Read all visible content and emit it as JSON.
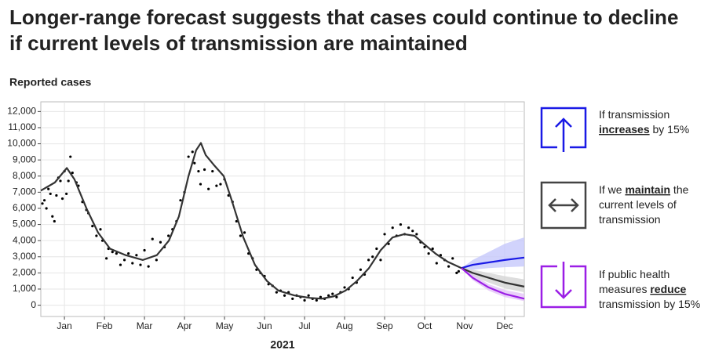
{
  "chart_data": {
    "type": "line",
    "title": "Longer-range forecast suggests that cases could continue to decline if current levels of transmission are maintained",
    "ylabel": "Reported cases",
    "xlabel": "2021",
    "xlim": [
      0.41,
      12.49
    ],
    "xticks": [
      {
        "value": 1,
        "label": "Jan"
      },
      {
        "value": 2,
        "label": "Feb"
      },
      {
        "value": 3,
        "label": "Mar"
      },
      {
        "value": 4,
        "label": "Apr"
      },
      {
        "value": 5,
        "label": "May"
      },
      {
        "value": 6,
        "label": "Jun"
      },
      {
        "value": 7,
        "label": "Jul"
      },
      {
        "value": 8,
        "label": "Aug"
      },
      {
        "value": 9,
        "label": "Sep"
      },
      {
        "value": 10,
        "label": "Oct"
      },
      {
        "value": 11,
        "label": "Nov"
      },
      {
        "value": 12,
        "label": "Dec"
      }
    ],
    "ylim": [
      -700,
      12600
    ],
    "yticks": [
      0,
      {
        "value": 1000,
        "label": "1,000"
      },
      {
        "value": 2000,
        "label": "2,000"
      },
      {
        "value": 3000,
        "label": "3,000"
      },
      {
        "value": 4000,
        "label": "4,000"
      },
      {
        "value": 5000,
        "label": "5,000"
      },
      {
        "value": 6000,
        "label": "6,000"
      },
      {
        "value": 7000,
        "label": "7,000"
      },
      {
        "value": 8000,
        "label": "8,000"
      },
      {
        "value": 9000,
        "label": "9,000"
      },
      {
        "value": 10000,
        "label": "10,000"
      },
      {
        "value": 11000,
        "label": "11,000"
      },
      {
        "value": 12000,
        "label": "12,000"
      }
    ],
    "grid": true,
    "series": [
      {
        "marker": "dot",
        "color": "#000000",
        "x": [
          0.45,
          0.5,
          0.55,
          0.6,
          0.65,
          0.7,
          0.75,
          0.8,
          0.85,
          0.9,
          0.95,
          1.0,
          1.05,
          1.1,
          1.15,
          1.2,
          1.3,
          1.35,
          1.45,
          1.55,
          1.6,
          1.7,
          1.8,
          1.9,
          1.95,
          2.05,
          2.1,
          2.2,
          2.3,
          2.4,
          2.5,
          2.6,
          2.7,
          2.8,
          2.9,
          3.0,
          3.1,
          3.2,
          3.3,
          3.4,
          3.5,
          3.6,
          3.7,
          3.8,
          3.9,
          4.0,
          4.1,
          4.2,
          4.25,
          4.35,
          4.4,
          4.5,
          4.6,
          4.7,
          4.8,
          4.9,
          5.0,
          5.1,
          5.2,
          5.3,
          5.4,
          5.5,
          5.6,
          5.7,
          5.8,
          5.9,
          6.0,
          6.1,
          6.2,
          6.3,
          6.4,
          6.5,
          6.6,
          6.7,
          6.8,
          6.9,
          7.0,
          7.1,
          7.2,
          7.3,
          7.4,
          7.5,
          7.6,
          7.7,
          7.8,
          7.9,
          8.0,
          8.1,
          8.2,
          8.3,
          8.4,
          8.5,
          8.6,
          8.7,
          8.8,
          8.9,
          9.0,
          9.1,
          9.2,
          9.3,
          9.4,
          9.5,
          9.6,
          9.7,
          9.8,
          9.9,
          10.0,
          10.1,
          10.2,
          10.3,
          10.4,
          10.5,
          10.6,
          10.7,
          10.8,
          10.85
        ],
        "values": [
          6300,
          6500,
          6000,
          7200,
          6900,
          5500,
          5200,
          6800,
          7900,
          7700,
          6600,
          8300,
          6900,
          7700,
          9200,
          8200,
          7600,
          7400,
          6400,
          5900,
          5700,
          4900,
          4300,
          4700,
          4000,
          2900,
          3500,
          3300,
          3200,
          2500,
          2800,
          3200,
          2600,
          3100,
          2500,
          3400,
          2400,
          4100,
          2800,
          3900,
          3600,
          4300,
          4700,
          5200,
          6500,
          7000,
          9200,
          9500,
          8800,
          8300,
          7500,
          8400,
          7200,
          8300,
          7400,
          7500,
          7800,
          6800,
          6400,
          5200,
          4300,
          4500,
          3200,
          2900,
          2200,
          2000,
          1800,
          1300,
          1200,
          800,
          900,
          600,
          800,
          400,
          600,
          500,
          300,
          600,
          400,
          300,
          500,
          400,
          600,
          700,
          500,
          800,
          1100,
          1000,
          1700,
          1400,
          2200,
          1900,
          2800,
          3000,
          3500,
          2800,
          4400,
          3800,
          4800,
          4300,
          5000,
          4400,
          4800,
          4600,
          4400,
          3900,
          3600,
          3200,
          3500,
          2600,
          3100,
          2800,
          2400,
          2900,
          2000,
          2100
        ]
      },
      {
        "color": "#333333",
        "x": [
          0.41,
          0.76,
          1.06,
          1.25,
          1.55,
          1.84,
          2.14,
          2.53,
          2.96,
          3.31,
          3.61,
          3.86,
          4.1,
          4.29,
          4.41,
          4.53,
          4.73,
          4.98,
          5.18,
          5.47,
          5.76,
          6.06,
          6.35,
          6.75,
          7.14,
          7.43,
          7.73,
          8.02,
          8.31,
          8.61,
          8.9,
          9.2,
          9.49,
          9.75,
          9.98,
          10.27,
          10.57,
          10.92
        ],
        "values": [
          7100,
          7600,
          8500,
          7800,
          6000,
          4500,
          3500,
          3100,
          2800,
          3100,
          4000,
          5500,
          8000,
          9600,
          10050,
          9300,
          8700,
          8000,
          6500,
          4200,
          2500,
          1500,
          900,
          600,
          450,
          400,
          550,
          900,
          1500,
          2300,
          3400,
          4200,
          4400,
          4300,
          3800,
          3200,
          2700,
          2300
        ]
      },
      {
        "color": "#1a1ae6",
        "band_color": "#c5c8fb",
        "x": [
          10.92,
          11.2,
          11.6,
          12.0,
          12.49
        ],
        "values": [
          2300,
          2500,
          2650,
          2800,
          2950
        ],
        "lower": [
          2300,
          2200,
          2300,
          2350,
          2400
        ],
        "upper": [
          2300,
          2800,
          3300,
          3800,
          4200
        ]
      },
      {
        "color": "#333333",
        "band_color": "#d4d4d4",
        "x": [
          10.92,
          11.2,
          11.6,
          12.0,
          12.49
        ],
        "values": [
          2300,
          2000,
          1700,
          1400,
          1150
        ],
        "lower": [
          2300,
          1800,
          1400,
          1050,
          800
        ],
        "upper": [
          2300,
          2200,
          2000,
          1800,
          1600
        ]
      },
      {
        "color": "#9b1ee6",
        "band_color": "#e3c4f7",
        "x": [
          10.92,
          11.2,
          11.6,
          12.0,
          12.49
        ],
        "values": [
          2300,
          1700,
          1100,
          700,
          400
        ],
        "lower": [
          2300,
          1550,
          900,
          500,
          250
        ],
        "upper": [
          2300,
          1900,
          1300,
          950,
          700
        ]
      }
    ],
    "annotations": [
      {
        "color": "#1a1ae6",
        "lines": [
          [
            {
              "t": "If transmission"
            }
          ],
          [
            {
              "t": "increases",
              "b": true
            },
            {
              "t": " by 15%"
            }
          ]
        ]
      },
      {
        "color": "#444444",
        "lines": [
          [
            {
              "t": "If we "
            },
            {
              "t": "maintain",
              "b": true
            },
            {
              "t": " the"
            }
          ],
          [
            {
              "t": "current levels of"
            }
          ],
          [
            {
              "t": "transmission"
            }
          ]
        ]
      },
      {
        "color": "#9b1ee6",
        "lines": [
          [
            {
              "t": "If public health"
            }
          ],
          [
            {
              "t": "measures "
            },
            {
              "t": "reduce",
              "b": true
            }
          ],
          [
            {
              "t": "transmission by 15%"
            }
          ]
        ]
      }
    ]
  }
}
